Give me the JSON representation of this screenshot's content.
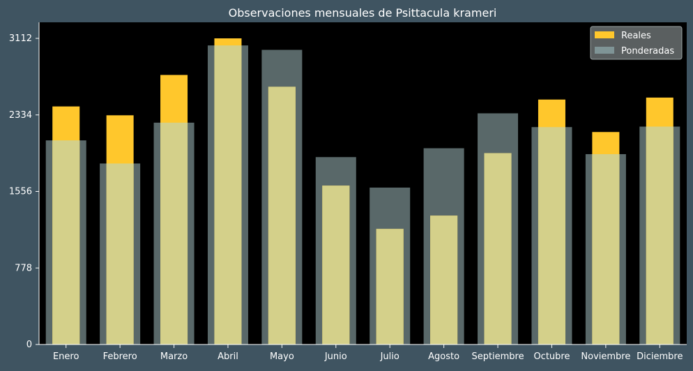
{
  "chart_data": {
    "type": "bar",
    "title": "Observaciones mensuales de Psittacula krameri",
    "xlabel": "",
    "ylabel": "",
    "categories": [
      "Enero",
      "Febrero",
      "Marzo",
      "Abril",
      "Mayo",
      "Junio",
      "Julio",
      "Agosto",
      "Septiembre",
      "Octubre",
      "Noviembre",
      "Diciembre"
    ],
    "series": [
      {
        "name": "Reales",
        "color": "#ffc72c",
        "values": [
          2420,
          2330,
          2740,
          3112,
          2620,
          1615,
          1175,
          1310,
          1945,
          2490,
          2160,
          2510
        ]
      },
      {
        "name": "Ponderadas",
        "color": "#7f9496",
        "values": [
          2075,
          1840,
          2255,
          3040,
          2995,
          1905,
          1595,
          1995,
          2350,
          2210,
          1935,
          2215
        ]
      }
    ],
    "overlap_color": "#d4d08a",
    "ylim": [
      0,
      3112
    ],
    "yticks": [
      0,
      778,
      1556,
      2334,
      3112
    ],
    "legend": "top-right",
    "grid": false
  }
}
